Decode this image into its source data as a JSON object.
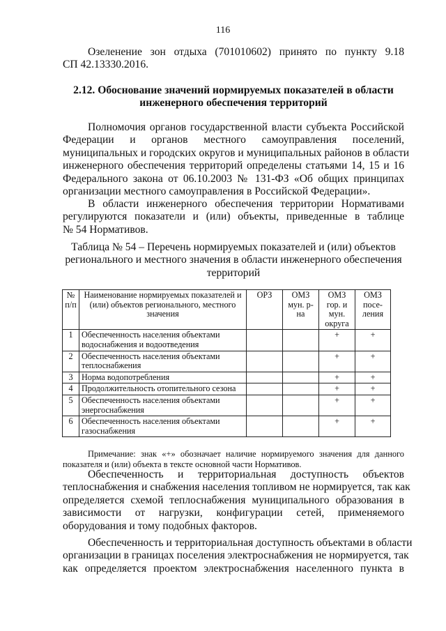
{
  "page_number": "116",
  "intro": [
    "Озеленение зон отдыха (701010602) принято по пункту 9.18",
    "СП 42.13330.2016."
  ],
  "heading": [
    "2.12. Обоснование значений нормируемых показателей в области",
    "инженерного обеспечения территорий"
  ],
  "para1": [
    "Полномочия органов государственной власти субъекта Российской",
    "Федерации и органов местного самоуправления поселений,",
    "муниципальных и городских округов и муниципальных районов в области",
    "инженерного обеспечения территорий определены статьями 14, 15 и 16",
    "Федерального закона от 06.10.2003 № 131-ФЗ «Об общих принципах",
    "организации местного самоуправления в Российской Федерации»."
  ],
  "para2": [
    "В области инженерного обеспечения территории Нормативами",
    "регулируются показатели и (или) объекты, приведенные в таблице",
    "№ 54 Нормативов."
  ],
  "caption": [
    "Таблица № 54 – Перечень нормируемых показателей и (или) объектов",
    "регионального и местного значения в области инженерного обеспечения",
    "территорий"
  ],
  "table": {
    "headers": [
      "№ п/п",
      "Наименование нормируемых показателей и (или) объектов регионального, местного значения",
      "ОРЗ",
      "ОМЗ мун. р-на",
      "ОМЗ гор. и мун. округа",
      "ОМЗ посе-ления"
    ],
    "rows": [
      [
        "1",
        "Обеспеченность населения объектами водоснабжения и водоотведения",
        "",
        "",
        "+",
        "+"
      ],
      [
        "2",
        "Обеспеченность населения объектами теплоснабжения",
        "",
        "",
        "+",
        "+"
      ],
      [
        "3",
        "Норма водопотребления",
        "",
        "",
        "+",
        "+"
      ],
      [
        "4",
        "Продолжительность отопительного сезона",
        "",
        "",
        "+",
        "+"
      ],
      [
        "5",
        "Обеспеченность населения объектами энергоснабжения",
        "",
        "",
        "+",
        "+"
      ],
      [
        "6",
        "Обеспеченность населения объектами газоснабжения",
        "",
        "",
        "+",
        "+"
      ]
    ]
  },
  "note": [
    "Примечание: знак «+» обозначает наличие нормируемого значения для данного",
    "показателя и (или) объекта в тексте основной части Нормативов."
  ],
  "para3": [
    "Обеспеченность и территориальная доступность объектов",
    "теплоснабжения и снабжения населения топливом не нормируется, так как",
    "определяется схемой теплоснабжения муниципального образования в",
    "зависимости от нагрузки, конфигурации сетей, применяемого",
    "оборудования и тому подобных факторов."
  ],
  "para4": [
    "Обеспеченность и территориальная доступность объектами в области",
    "организации в границах поселения электроснабжения не нормируется, так",
    "как определяется проектом электроснабжения населенного пункта в"
  ]
}
